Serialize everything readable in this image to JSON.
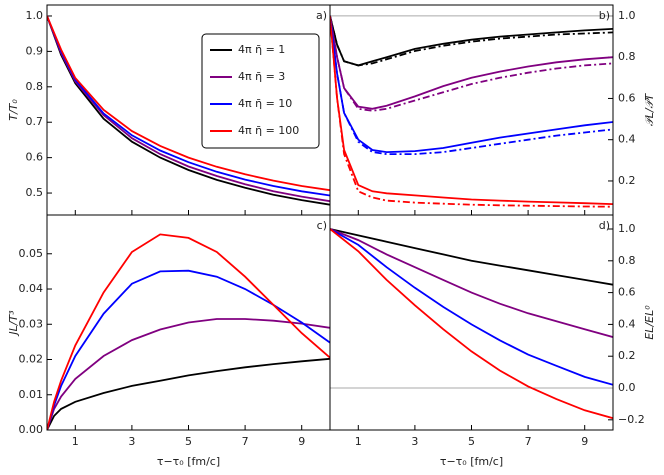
{
  "chart_data": [
    {
      "type": "line",
      "panel_label": "a)",
      "ylabel": "T/T₀",
      "y_axis_side": "left",
      "xlim": [
        0,
        10
      ],
      "xticks": [
        1,
        3,
        5,
        7,
        9
      ],
      "ylim": [
        0.438,
        1.031
      ],
      "yticks": [
        0.5,
        0.6,
        0.7,
        0.8,
        0.9,
        {
          "value": 1,
          "label": "1.0"
        }
      ],
      "legend": "upper center",
      "x": [
        0,
        0.5,
        1,
        2,
        3,
        4,
        5,
        6,
        7,
        8,
        9,
        10
      ],
      "series": [
        {
          "name": "4π η̄ = 1",
          "color": "#000000",
          "values": [
            1.0,
            0.89,
            0.81,
            0.71,
            0.645,
            0.6,
            0.565,
            0.537,
            0.515,
            0.495,
            0.48,
            0.467
          ]
        },
        {
          "name": "4π η̄ = 3",
          "color": "#800080",
          "values": [
            1.0,
            0.895,
            0.815,
            0.72,
            0.655,
            0.61,
            0.575,
            0.548,
            0.525,
            0.505,
            0.49,
            0.477
          ]
        },
        {
          "name": "4π η̄ = 10",
          "color": "#0000ff",
          "values": [
            1.0,
            0.9,
            0.82,
            0.725,
            0.663,
            0.62,
            0.587,
            0.56,
            0.538,
            0.52,
            0.505,
            0.493
          ]
        },
        {
          "name": "4π η̄ = 100",
          "color": "#ff0000",
          "values": [
            1.0,
            0.905,
            0.825,
            0.735,
            0.675,
            0.633,
            0.6,
            0.574,
            0.553,
            0.535,
            0.52,
            0.508
          ]
        }
      ]
    },
    {
      "type": "line",
      "panel_label": "b)",
      "ylabel": "𝒫L/𝒫T",
      "y_axis_side": "right",
      "xlim": [
        0,
        10
      ],
      "xticks": [
        1,
        3,
        5,
        7,
        9
      ],
      "ylim": [
        0.035,
        1.053
      ],
      "yticks": [
        0.2,
        0.4,
        0.6,
        0.8,
        {
          "value": 1,
          "label": "1.0"
        }
      ],
      "reference_line": 1,
      "x": [
        0,
        0.25,
        0.5,
        1,
        1.5,
        2,
        3,
        4,
        5,
        6,
        7,
        8,
        9,
        10
      ],
      "series": [
        {
          "color": "#000000",
          "values": [
            1.0,
            0.86,
            0.78,
            0.76,
            0.78,
            0.8,
            0.84,
            0.865,
            0.885,
            0.9,
            0.91,
            0.92,
            0.93,
            0.937
          ]
        },
        {
          "color": "#800080",
          "values": [
            1.0,
            0.8,
            0.65,
            0.56,
            0.55,
            0.565,
            0.61,
            0.66,
            0.7,
            0.73,
            0.755,
            0.775,
            0.79,
            0.8
          ]
        },
        {
          "color": "#0000ff",
          "values": [
            1.0,
            0.72,
            0.53,
            0.4,
            0.35,
            0.34,
            0.345,
            0.36,
            0.385,
            0.41,
            0.43,
            0.45,
            0.47,
            0.486
          ]
        },
        {
          "color": "#ff0000",
          "values": [
            1.0,
            0.6,
            0.35,
            0.18,
            0.15,
            0.14,
            0.13,
            0.12,
            0.11,
            0.105,
            0.1,
            0.096,
            0.092,
            0.088
          ]
        },
        {
          "color": "#000000",
          "dashed": true,
          "values": [
            1.0,
            0.86,
            0.78,
            0.76,
            0.77,
            0.79,
            0.83,
            0.855,
            0.875,
            0.89,
            0.9,
            0.91,
            0.915,
            0.92
          ]
        },
        {
          "color": "#800080",
          "dashed": true,
          "values": [
            1.0,
            0.8,
            0.65,
            0.55,
            0.54,
            0.55,
            0.59,
            0.63,
            0.67,
            0.7,
            0.725,
            0.745,
            0.76,
            0.77
          ]
        },
        {
          "color": "#0000ff",
          "dashed": true,
          "values": [
            1.0,
            0.72,
            0.53,
            0.39,
            0.34,
            0.33,
            0.33,
            0.34,
            0.36,
            0.38,
            0.4,
            0.42,
            0.435,
            0.45
          ]
        },
        {
          "color": "#ff0000",
          "dashed": true,
          "values": [
            1.0,
            0.6,
            0.33,
            0.15,
            0.12,
            0.105,
            0.095,
            0.09,
            0.085,
            0.082,
            0.08,
            0.078,
            0.076,
            0.075
          ]
        }
      ]
    },
    {
      "type": "line",
      "panel_label": "c)",
      "ylabel": "JL/T³",
      "y_axis_side": "left",
      "xlabel": "τ−τ₀ [fm/c]",
      "xlim": [
        0,
        10
      ],
      "xticks": [
        1,
        3,
        5,
        7,
        9
      ],
      "ylim": [
        0,
        0.061
      ],
      "yticks": [
        {
          "value": 0,
          "label": "0.00"
        },
        0.01,
        0.02,
        0.03,
        0.04,
        0.05
      ],
      "x": [
        0,
        0.25,
        0.5,
        1,
        2,
        3,
        4,
        5,
        6,
        7,
        8,
        9,
        10
      ],
      "series": [
        {
          "color": "#000000",
          "values": [
            0,
            0.004,
            0.006,
            0.008,
            0.0105,
            0.0125,
            0.014,
            0.0155,
            0.0167,
            0.0178,
            0.0187,
            0.0195,
            0.0202
          ]
        },
        {
          "color": "#800080",
          "values": [
            0,
            0.006,
            0.0095,
            0.0145,
            0.021,
            0.0255,
            0.0285,
            0.0305,
            0.0315,
            0.0315,
            0.031,
            0.0302,
            0.029
          ]
        },
        {
          "color": "#0000ff",
          "values": [
            0,
            0.007,
            0.0125,
            0.021,
            0.033,
            0.0415,
            0.045,
            0.0452,
            0.0435,
            0.04,
            0.0355,
            0.0305,
            0.0248
          ]
        },
        {
          "color": "#ff0000",
          "values": [
            0,
            0.008,
            0.014,
            0.024,
            0.039,
            0.0505,
            0.0555,
            0.0545,
            0.0505,
            0.0435,
            0.0355,
            0.0275,
            0.0205
          ]
        }
      ]
    },
    {
      "type": "line",
      "panel_label": "d)",
      "ylabel": "EL/EL⁰",
      "y_axis_side": "right",
      "xlabel": "τ−τ₀ [fm/c]",
      "xlim": [
        0,
        10
      ],
      "xticks": [
        1,
        3,
        5,
        7,
        9
      ],
      "ylim": [
        -0.264,
        1.088
      ],
      "yticks": [
        {
          "value": -0.2,
          "label": "−0.2"
        },
        {
          "value": 0,
          "label": "0.0"
        },
        0.2,
        0.4,
        0.6,
        0.8,
        {
          "value": 1,
          "label": "1.0"
        }
      ],
      "reference_line": 0,
      "x": [
        0,
        1,
        2,
        3,
        4,
        5,
        6,
        7,
        8,
        9,
        10
      ],
      "series": [
        {
          "color": "#000000",
          "values": [
            1.0,
            0.96,
            0.92,
            0.88,
            0.84,
            0.8,
            0.77,
            0.74,
            0.71,
            0.68,
            0.65
          ]
        },
        {
          "color": "#800080",
          "values": [
            1.0,
            0.93,
            0.84,
            0.76,
            0.68,
            0.6,
            0.53,
            0.47,
            0.42,
            0.37,
            0.32
          ]
        },
        {
          "color": "#0000ff",
          "values": [
            1.0,
            0.9,
            0.76,
            0.63,
            0.51,
            0.4,
            0.3,
            0.21,
            0.14,
            0.07,
            0.02
          ]
        },
        {
          "color": "#ff0000",
          "values": [
            1.0,
            0.86,
            0.68,
            0.52,
            0.37,
            0.23,
            0.11,
            0.01,
            -0.07,
            -0.14,
            -0.19
          ]
        }
      ]
    }
  ]
}
